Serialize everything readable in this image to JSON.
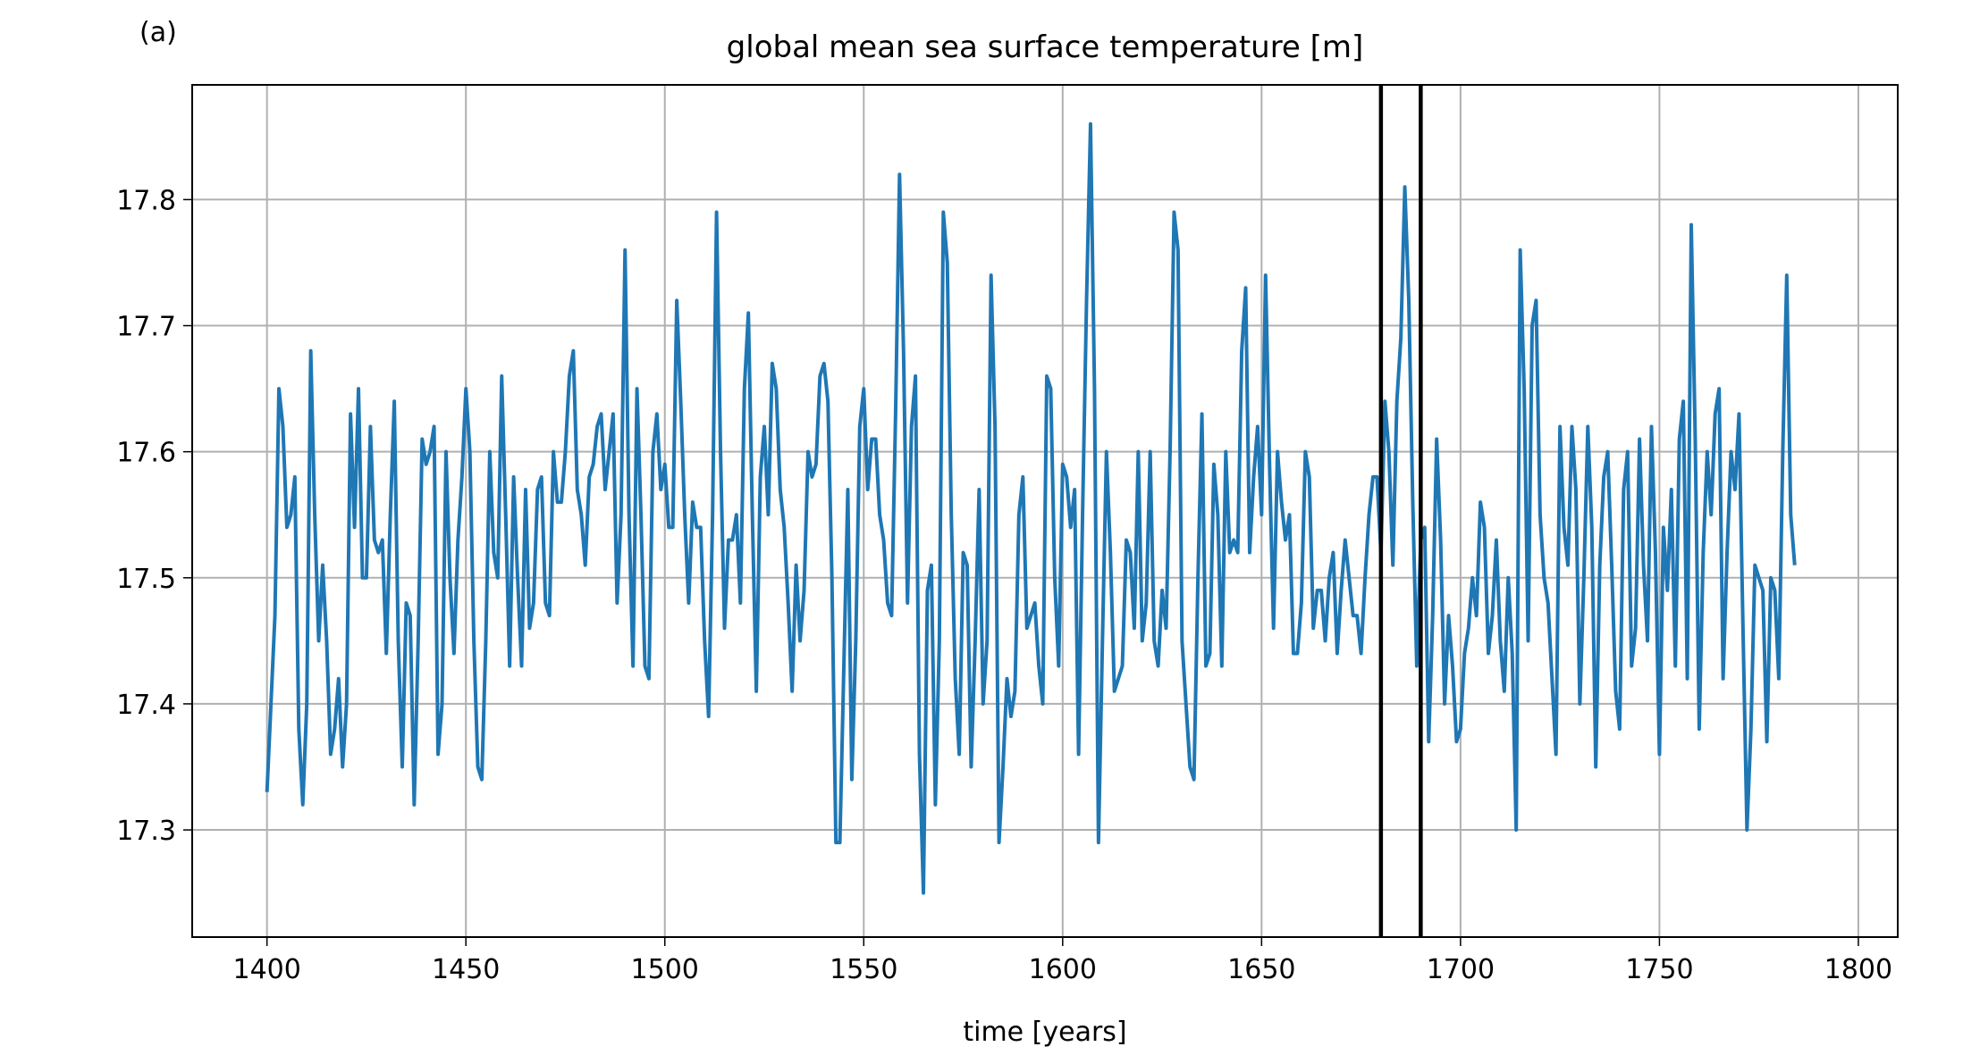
{
  "chart_data": {
    "type": "line",
    "panel_label": "(a)",
    "title": "global mean sea surface temperature [m]",
    "xlabel": "time [years]",
    "color": "#1f77b4",
    "grid": true,
    "xlim": [
      1381.2,
      1809.9
    ],
    "ylim": [
      17.215,
      17.891
    ],
    "xticks": [
      1400,
      1450,
      1500,
      1550,
      1600,
      1650,
      1700,
      1750,
      1800
    ],
    "yticks": [
      17.3,
      17.4,
      17.5,
      17.6,
      17.7,
      17.8
    ],
    "vlines": [
      1680,
      1690
    ],
    "x": [
      1400,
      1401,
      1402,
      1403,
      1404,
      1405,
      1406,
      1407,
      1408,
      1409,
      1410,
      1411,
      1412,
      1413,
      1414,
      1415,
      1416,
      1417,
      1418,
      1419,
      1420,
      1421,
      1422,
      1423,
      1424,
      1425,
      1426,
      1427,
      1428,
      1429,
      1430,
      1431,
      1432,
      1433,
      1434,
      1435,
      1436,
      1437,
      1438,
      1439,
      1440,
      1441,
      1442,
      1443,
      1444,
      1445,
      1446,
      1447,
      1448,
      1449,
      1450,
      1451,
      1452,
      1453,
      1454,
      1455,
      1456,
      1457,
      1458,
      1459,
      1460,
      1461,
      1462,
      1463,
      1464,
      1465,
      1466,
      1467,
      1468,
      1469,
      1470,
      1471,
      1472,
      1473,
      1474,
      1475,
      1476,
      1477,
      1478,
      1479,
      1480,
      1481,
      1482,
      1483,
      1484,
      1485,
      1486,
      1487,
      1488,
      1489,
      1490,
      1491,
      1492,
      1493,
      1494,
      1495,
      1496,
      1497,
      1498,
      1499,
      1500,
      1501,
      1502,
      1503,
      1504,
      1505,
      1506,
      1507,
      1508,
      1509,
      1510,
      1511,
      1512,
      1513,
      1514,
      1515,
      1516,
      1517,
      1518,
      1519,
      1520,
      1521,
      1522,
      1523,
      1524,
      1525,
      1526,
      1527,
      1528,
      1529,
      1530,
      1531,
      1532,
      1533,
      1534,
      1535,
      1536,
      1537,
      1538,
      1539,
      1540,
      1541,
      1542,
      1543,
      1544,
      1545,
      1546,
      1547,
      1548,
      1549,
      1550,
      1551,
      1552,
      1553,
      1554,
      1555,
      1556,
      1557,
      1558,
      1559,
      1560,
      1561,
      1562,
      1563,
      1564,
      1565,
      1566,
      1567,
      1568,
      1569,
      1570,
      1571,
      1572,
      1573,
      1574,
      1575,
      1576,
      1577,
      1578,
      1579,
      1580,
      1581,
      1582,
      1583,
      1584,
      1585,
      1586,
      1587,
      1588,
      1589,
      1590,
      1591,
      1592,
      1593,
      1594,
      1595,
      1596,
      1597,
      1598,
      1599,
      1600,
      1601,
      1602,
      1603,
      1604,
      1605,
      1606,
      1607,
      1608,
      1609,
      1610,
      1611,
      1612,
      1613,
      1614,
      1615,
      1616,
      1617,
      1618,
      1619,
      1620,
      1621,
      1622,
      1623,
      1624,
      1625,
      1626,
      1627,
      1628,
      1629,
      1630,
      1631,
      1632,
      1633,
      1634,
      1635,
      1636,
      1637,
      1638,
      1639,
      1640,
      1641,
      1642,
      1643,
      1644,
      1645,
      1646,
      1647,
      1648,
      1649,
      1650,
      1651,
      1652,
      1653,
      1654,
      1655,
      1656,
      1657,
      1658,
      1659,
      1660,
      1661,
      1662,
      1663,
      1664,
      1665,
      1666,
      1667,
      1668,
      1669,
      1670,
      1671,
      1672,
      1673,
      1674,
      1675,
      1676,
      1677,
      1678,
      1679,
      1680,
      1681,
      1682,
      1683,
      1684,
      1685,
      1686,
      1687,
      1688,
      1689,
      1690,
      1691,
      1692,
      1693,
      1694,
      1695,
      1696,
      1697,
      1698,
      1699,
      1700,
      1701,
      1702,
      1703,
      1704,
      1705,
      1706,
      1707,
      1708,
      1709,
      1710,
      1711,
      1712,
      1713,
      1714,
      1715,
      1716,
      1717,
      1718,
      1719,
      1720,
      1721,
      1722,
      1723,
      1724,
      1725,
      1726,
      1727,
      1728,
      1729,
      1730,
      1731,
      1732,
      1733,
      1734,
      1735,
      1736,
      1737,
      1738,
      1739,
      1740,
      1741,
      1742,
      1743,
      1744,
      1745,
      1746,
      1747,
      1748,
      1749,
      1750,
      1751,
      1752,
      1753,
      1754,
      1755,
      1756,
      1757,
      1758,
      1759,
      1760,
      1761,
      1762,
      1763,
      1764,
      1765,
      1766,
      1767,
      1768,
      1769,
      1770,
      1771,
      1772,
      1773,
      1774,
      1775,
      1776,
      1777,
      1778,
      1779,
      1780,
      1781,
      1782,
      1783,
      1784
    ],
    "values": [
      17.33,
      17.4,
      17.47,
      17.65,
      17.62,
      17.54,
      17.55,
      17.58,
      17.38,
      17.32,
      17.4,
      17.68,
      17.55,
      17.45,
      17.51,
      17.45,
      17.36,
      17.38,
      17.42,
      17.35,
      17.4,
      17.63,
      17.54,
      17.65,
      17.5,
      17.5,
      17.62,
      17.53,
      17.52,
      17.53,
      17.44,
      17.55,
      17.64,
      17.45,
      17.35,
      17.48,
      17.47,
      17.32,
      17.45,
      17.61,
      17.59,
      17.6,
      17.62,
      17.36,
      17.4,
      17.6,
      17.5,
      17.44,
      17.53,
      17.58,
      17.65,
      17.6,
      17.45,
      17.35,
      17.34,
      17.45,
      17.6,
      17.52,
      17.5,
      17.66,
      17.55,
      17.43,
      17.58,
      17.5,
      17.43,
      17.57,
      17.46,
      17.48,
      17.57,
      17.58,
      17.48,
      17.47,
      17.6,
      17.56,
      17.56,
      17.6,
      17.66,
      17.68,
      17.57,
      17.55,
      17.51,
      17.58,
      17.59,
      17.62,
      17.63,
      17.57,
      17.6,
      17.63,
      17.48,
      17.55,
      17.76,
      17.55,
      17.43,
      17.65,
      17.55,
      17.43,
      17.42,
      17.6,
      17.63,
      17.57,
      17.59,
      17.54,
      17.54,
      17.72,
      17.64,
      17.55,
      17.48,
      17.56,
      17.54,
      17.54,
      17.45,
      17.39,
      17.55,
      17.79,
      17.6,
      17.46,
      17.53,
      17.53,
      17.55,
      17.48,
      17.65,
      17.71,
      17.55,
      17.41,
      17.58,
      17.62,
      17.55,
      17.67,
      17.65,
      17.57,
      17.54,
      17.48,
      17.41,
      17.51,
      17.45,
      17.49,
      17.6,
      17.58,
      17.59,
      17.66,
      17.67,
      17.64,
      17.5,
      17.29,
      17.29,
      17.43,
      17.57,
      17.34,
      17.45,
      17.62,
      17.65,
      17.57,
      17.61,
      17.61,
      17.55,
      17.53,
      17.48,
      17.47,
      17.63,
      17.82,
      17.68,
      17.48,
      17.62,
      17.66,
      17.36,
      17.25,
      17.49,
      17.51,
      17.32,
      17.45,
      17.79,
      17.75,
      17.55,
      17.42,
      17.36,
      17.52,
      17.51,
      17.35,
      17.45,
      17.57,
      17.4,
      17.45,
      17.74,
      17.62,
      17.29,
      17.35,
      17.42,
      17.39,
      17.41,
      17.55,
      17.58,
      17.46,
      17.47,
      17.48,
      17.43,
      17.4,
      17.66,
      17.65,
      17.5,
      17.43,
      17.59,
      17.58,
      17.54,
      17.57,
      17.36,
      17.55,
      17.72,
      17.86,
      17.65,
      17.29,
      17.45,
      17.6,
      17.52,
      17.41,
      17.42,
      17.43,
      17.53,
      17.52,
      17.46,
      17.6,
      17.45,
      17.48,
      17.6,
      17.45,
      17.43,
      17.49,
      17.46,
      17.6,
      17.79,
      17.76,
      17.45,
      17.4,
      17.35,
      17.34,
      17.5,
      17.63,
      17.43,
      17.44,
      17.59,
      17.55,
      17.43,
      17.6,
      17.52,
      17.53,
      17.52,
      17.68,
      17.73,
      17.52,
      17.58,
      17.62,
      17.55,
      17.74,
      17.59,
      17.46,
      17.6,
      17.56,
      17.53,
      17.55,
      17.44,
      17.44,
      17.48,
      17.6,
      17.58,
      17.46,
      17.49,
      17.49,
      17.45,
      17.5,
      17.52,
      17.44,
      17.49,
      17.53,
      17.5,
      17.47,
      17.47,
      17.44,
      17.5,
      17.55,
      17.58,
      17.58,
      17.52,
      17.64,
      17.6,
      17.51,
      17.64,
      17.69,
      17.81,
      17.72,
      17.56,
      17.43,
      17.53,
      17.54,
      17.37,
      17.47,
      17.61,
      17.53,
      17.4,
      17.47,
      17.43,
      17.37,
      17.38,
      17.44,
      17.46,
      17.5,
      17.47,
      17.56,
      17.54,
      17.44,
      17.47,
      17.53,
      17.45,
      17.41,
      17.5,
      17.44,
      17.3,
      17.76,
      17.65,
      17.45,
      17.7,
      17.72,
      17.55,
      17.5,
      17.48,
      17.42,
      17.36,
      17.62,
      17.54,
      17.51,
      17.62,
      17.57,
      17.4,
      17.5,
      17.62,
      17.54,
      17.35,
      17.51,
      17.58,
      17.6,
      17.51,
      17.41,
      17.38,
      17.57,
      17.6,
      17.43,
      17.46,
      17.61,
      17.51,
      17.45,
      17.62,
      17.52,
      17.36,
      17.54,
      17.49,
      17.57,
      17.43,
      17.61,
      17.64,
      17.42,
      17.78,
      17.61,
      17.38,
      17.52,
      17.6,
      17.55,
      17.63,
      17.65,
      17.42,
      17.52,
      17.6,
      17.57,
      17.63,
      17.46,
      17.3,
      17.38,
      17.51,
      17.5,
      17.49,
      17.37,
      17.5,
      17.49,
      17.42,
      17.6,
      17.74,
      17.55,
      17.51
    ]
  }
}
